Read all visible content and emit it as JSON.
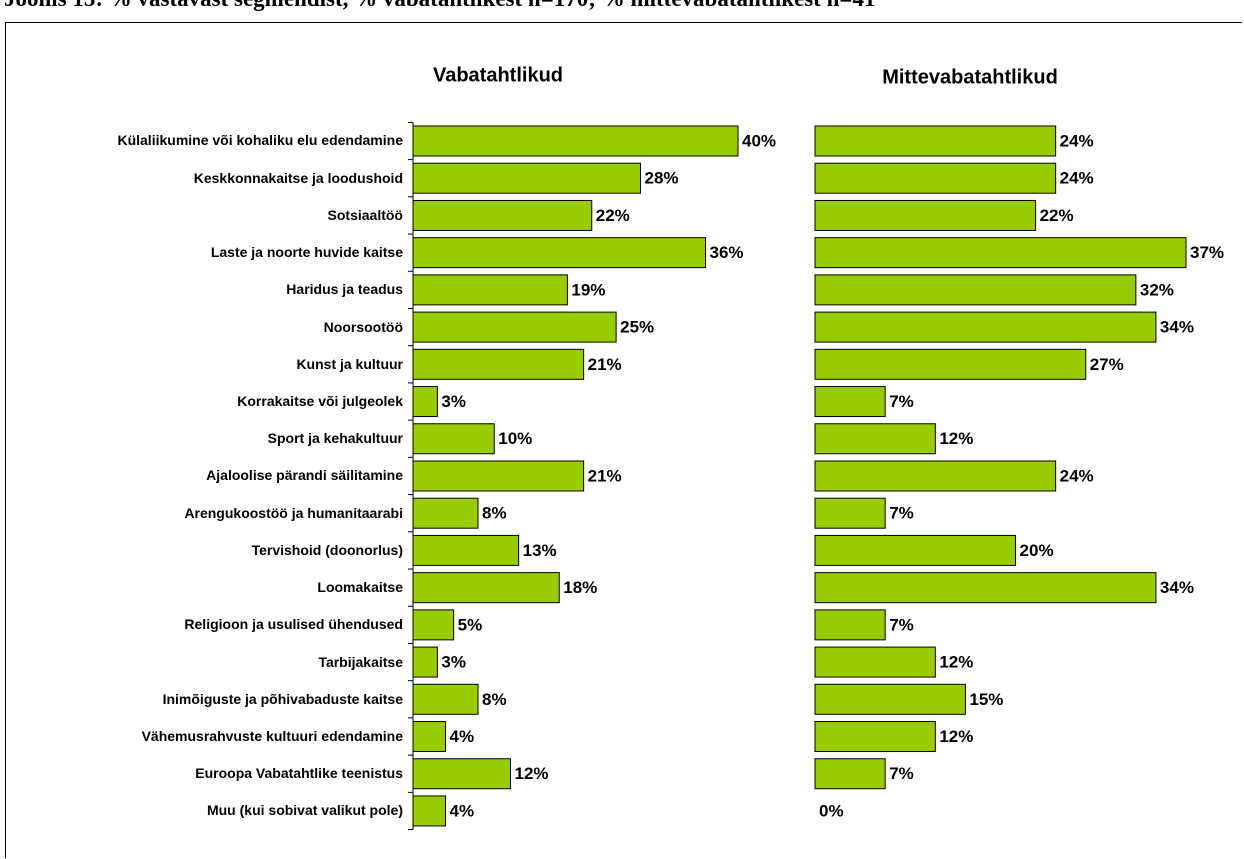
{
  "title": "Joonis 13: % vastavast segmendist, % vabatahtlikest n=170; % mittevabatahtlikest n=41",
  "chart_data": [
    {
      "type": "bar",
      "orientation": "horizontal",
      "title": "Vabatahtlikud",
      "color": "#99cc00",
      "categories": [
        "Külaliikumine või kohaliku elu edendamine",
        "Keskkonnakaitse ja loodushoid",
        "Sotsiaaltöö",
        "Laste ja noorte huvide kaitse",
        "Haridus ja teadus",
        "Noorsootöö",
        "Kunst ja kultuur",
        "Korrakaitse või julgeolek",
        "Sport ja kehakultuur",
        "Ajaloolise pärandi säilitamine",
        "Arengukoostöö ja humanitaarabi",
        "Tervishoid  (doonorlus)",
        "Loomakaitse",
        "Religioon ja usulised ühendused",
        "Tarbijakaitse",
        "Inimõiguste ja põhivabaduste kaitse",
        "Vähemusrahvuste kultuuri edendamine",
        "Euroopa Vabatahtlike teenistus",
        "Muu (kui sobivat valikut pole)"
      ],
      "values": [
        40,
        28,
        22,
        36,
        19,
        25,
        21,
        3,
        10,
        21,
        8,
        13,
        18,
        5,
        3,
        8,
        4,
        12,
        4
      ],
      "value_labels": [
        "40%",
        "28%",
        "22%",
        "36%",
        "19%",
        "25%",
        "21%",
        "3%",
        "10%",
        "21%",
        "8%",
        "13%",
        "18%",
        "5%",
        "3%",
        "8%",
        "4%",
        "12%",
        "4%"
      ],
      "xlim": [
        0,
        40
      ]
    },
    {
      "type": "bar",
      "orientation": "horizontal",
      "title": "Mittevabatahtlikud",
      "color": "#99cc00",
      "values": [
        24,
        24,
        22,
        37,
        32,
        34,
        27,
        7,
        12,
        24,
        7,
        20,
        34,
        7,
        12,
        15,
        12,
        7,
        0
      ],
      "value_labels": [
        "24%",
        "24%",
        "22%",
        "37%",
        "32%",
        "34%",
        "27%",
        "7%",
        "12%",
        "24%",
        "7%",
        "20%",
        "34%",
        "7%",
        "12%",
        "15%",
        "12%",
        "7%",
        "0%"
      ],
      "xlim": [
        0,
        37
      ]
    }
  ]
}
